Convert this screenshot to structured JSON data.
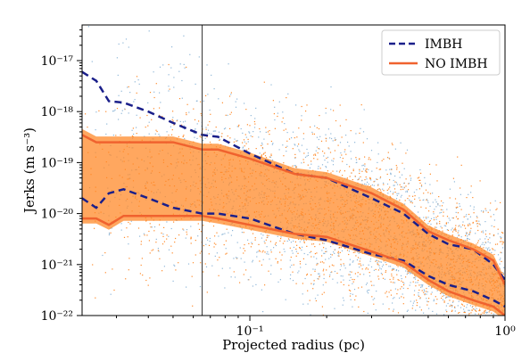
{
  "chart_data": {
    "type": "scatter",
    "title": "",
    "xlabel": "Projected radius (pc)",
    "ylabel": "Jerks (m s⁻³)",
    "xscale": "log",
    "yscale": "log",
    "xlim": [
      0.022,
      1.0
    ],
    "ylim": [
      1e-22,
      5e-17
    ],
    "x_tick_labels": [
      "10⁻¹",
      "10⁰"
    ],
    "y_tick_labels": [
      "10⁻²²",
      "10⁻²¹",
      "10⁻²⁰",
      "10⁻¹⁹",
      "10⁻¹⁸",
      "10⁻¹⁷"
    ],
    "grid": false,
    "legend": {
      "placement": "top-right"
    },
    "vertical_line_x": 0.065,
    "series": [
      {
        "name": "IMBH",
        "kind": "envelope",
        "color": "#1a1f8a",
        "linestyle": "dashed",
        "upper": {
          "x": [
            0.022,
            0.025,
            0.028,
            0.032,
            0.04,
            0.05,
            0.065,
            0.075,
            0.1,
            0.15,
            0.2,
            0.3,
            0.4,
            0.5,
            0.6,
            0.75,
            0.9,
            1.0
          ],
          "y": [
            6e-18,
            4e-18,
            1.6e-18,
            1.5e-18,
            1e-18,
            6e-19,
            3.5e-19,
            3.2e-19,
            1.5e-19,
            6e-20,
            5e-20,
            2e-20,
            1e-20,
            4e-21,
            2.5e-21,
            2e-21,
            1e-21,
            5e-22
          ]
        },
        "lower": {
          "x": [
            0.022,
            0.025,
            0.028,
            0.032,
            0.04,
            0.05,
            0.065,
            0.075,
            0.1,
            0.15,
            0.2,
            0.3,
            0.4,
            0.5,
            0.6,
            0.75,
            0.9,
            1.0
          ],
          "y": [
            2e-20,
            1.3e-20,
            2.5e-20,
            3e-20,
            2e-20,
            1.3e-20,
            1e-20,
            1e-20,
            8e-21,
            4e-21,
            3e-21,
            1.6e-21,
            1.2e-21,
            6e-22,
            4e-22,
            3e-22,
            2e-22,
            1.5e-22
          ]
        }
      },
      {
        "name": "NO IMBH",
        "kind": "envelope",
        "color": "#f0622e",
        "linestyle": "solid",
        "upper": {
          "x": [
            0.022,
            0.025,
            0.028,
            0.032,
            0.04,
            0.05,
            0.065,
            0.075,
            0.1,
            0.15,
            0.2,
            0.3,
            0.4,
            0.5,
            0.6,
            0.75,
            0.9,
            1.0
          ],
          "y": [
            3.5e-19,
            2.5e-19,
            2.5e-19,
            2.5e-19,
            2.5e-19,
            2.5e-19,
            1.8e-19,
            1.8e-19,
            1.2e-19,
            6e-20,
            5e-20,
            2.5e-20,
            1.2e-20,
            4.5e-21,
            3e-21,
            2e-21,
            1.2e-21,
            4e-22
          ]
        },
        "lower": {
          "x": [
            0.022,
            0.025,
            0.028,
            0.032,
            0.04,
            0.05,
            0.065,
            0.075,
            0.1,
            0.15,
            0.2,
            0.3,
            0.4,
            0.5,
            0.6,
            0.75,
            0.9,
            1.0
          ],
          "y": [
            8e-21,
            8e-21,
            6e-21,
            9e-21,
            9e-21,
            9e-21,
            9e-21,
            8e-21,
            6e-21,
            4e-21,
            3.5e-21,
            1.8e-21,
            1.1e-21,
            5e-22,
            3e-22,
            2e-22,
            1.5e-22,
            1e-22
          ]
        }
      }
    ],
    "scatter_colors": {
      "blue": "#8fb7d8",
      "orange": "#ff8a2a"
    },
    "band_color": "#ff8a2a"
  }
}
